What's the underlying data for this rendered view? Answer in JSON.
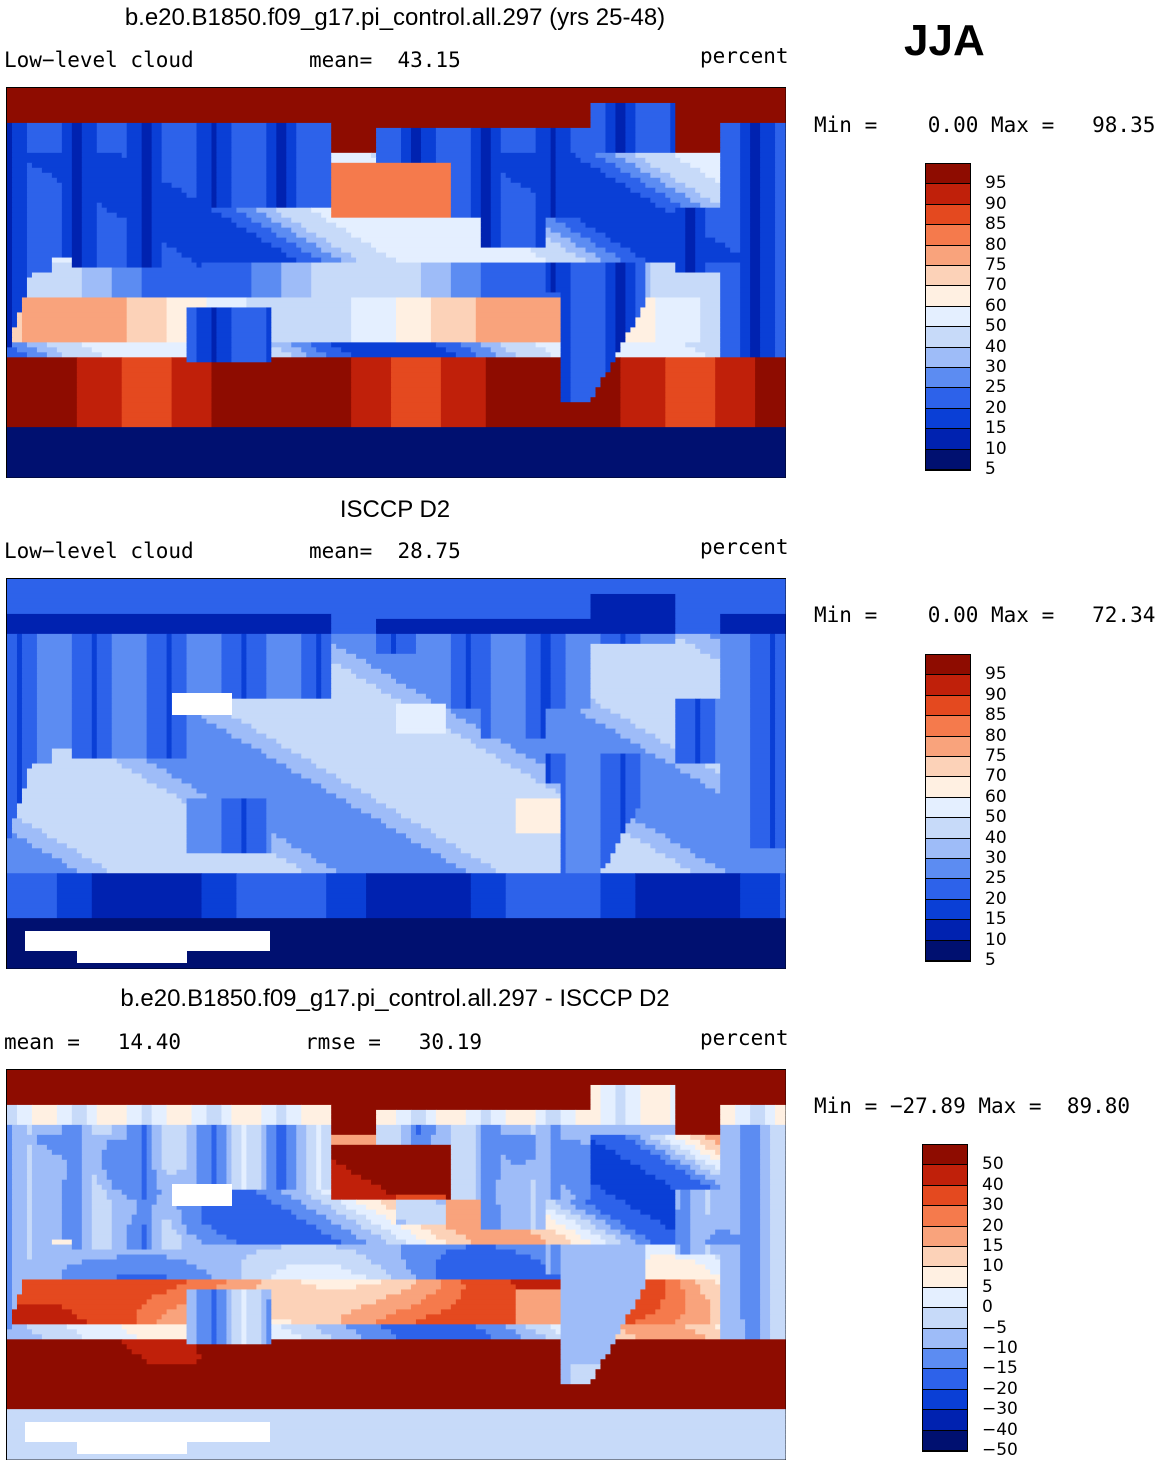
{
  "season": "JJA",
  "colors": {
    "c0": "#001070",
    "c1": "#0022b0",
    "c2": "#0a3fd6",
    "c3": "#2d62ea",
    "c4": "#5c8cf2",
    "c5": "#9ebcf8",
    "c6": "#c7daf9",
    "c7": "#e4efff",
    "c8": "#fff0e2",
    "c9": "#fcd2b8",
    "c10": "#f9a37c",
    "c11": "#f57a4c",
    "c12": "#e4491f",
    "c13": "#c0200a",
    "c14": "#8e0c00"
  },
  "panels": [
    {
      "title": "b.e20.B1850.f09_g17.pi_control.all.297 (yrs 25-48)",
      "left_label": "Low−level cloud",
      "center_label": "mean=  43.15",
      "units": "percent",
      "minmax": "Min =    0.00 Max =   98.35",
      "colorbar_labels": [
        "95",
        "90",
        "85",
        "80",
        "75",
        "70",
        "60",
        "50",
        "40",
        "30",
        "25",
        "20",
        "15",
        "10",
        "5"
      ],
      "field": "model"
    },
    {
      "title": "ISCCP D2",
      "left_label": "Low−level cloud",
      "center_label": "mean=  28.75",
      "units": "percent",
      "minmax": "Min =    0.00 Max =   72.34",
      "colorbar_labels": [
        "95",
        "90",
        "85",
        "80",
        "75",
        "70",
        "60",
        "50",
        "40",
        "30",
        "25",
        "20",
        "15",
        "10",
        "5"
      ],
      "field": "obs"
    },
    {
      "title": "b.e20.B1850.f09_g17.pi_control.all.297 - ISCCP D2",
      "left_label": "mean =   14.40",
      "center_label": "rmse =   30.19",
      "units": "percent",
      "minmax": "Min = −27.89 Max =  89.80",
      "colorbar_labels": [
        "50",
        "40",
        "30",
        "20",
        "15",
        "10",
        "5",
        "0",
        "−5",
        "−10",
        "−15",
        "−20",
        "−30",
        "−40",
        "−50"
      ],
      "field": "diff"
    }
  ]
}
